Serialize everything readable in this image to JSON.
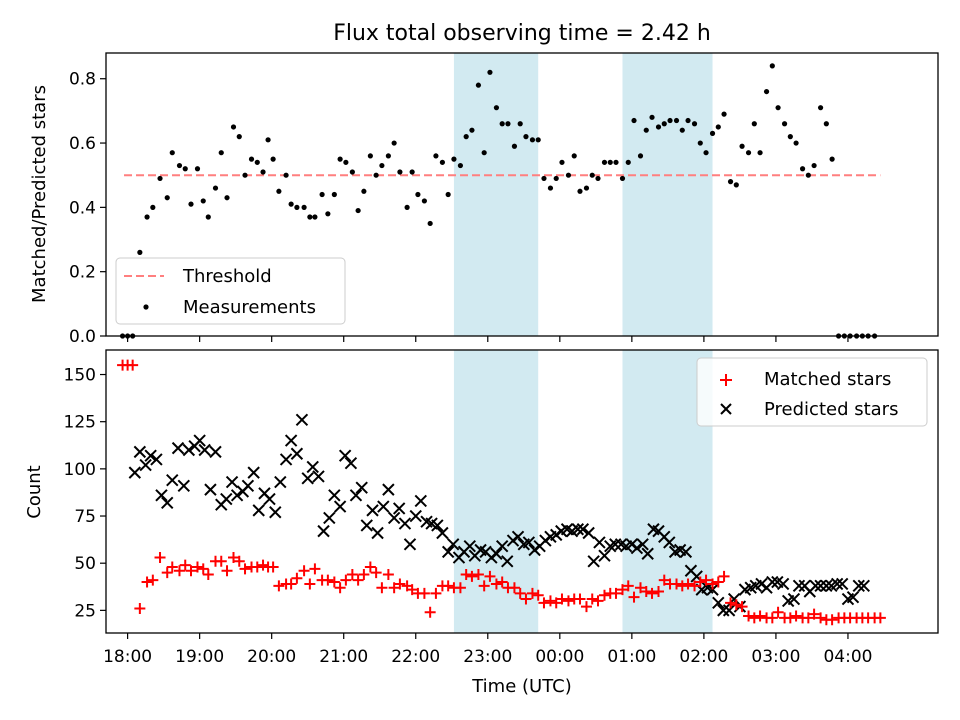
{
  "figure": {
    "title": "Flux total observing time = 2.42 h",
    "xlabel": "Time (UTC)"
  },
  "colors": {
    "band": "#add8e6",
    "threshold": "#ff7f7f",
    "measurement": "#000000",
    "matched": "#ff0000",
    "predicted": "#000000"
  },
  "chart_data": [
    {
      "type": "scatter",
      "ylabel": "Matched/Predicted stars",
      "ylim": [
        0,
        0.88
      ],
      "yticks": [
        "0.0",
        "0.2",
        "0.4",
        "0.6",
        "0.8"
      ],
      "ytick_values": [
        0,
        0.2,
        0.4,
        0.6,
        0.8
      ],
      "xlim": [
        17.7,
        29.25
      ],
      "shaded_intervals": [
        [
          22.53,
          23.7
        ],
        [
          24.87,
          26.12
        ]
      ],
      "threshold": {
        "name": "Threshold",
        "y": 0.5,
        "x_range": [
          17.95,
          28.45
        ]
      },
      "legend_position": "lower-left",
      "series": [
        {
          "name": "Measurements",
          "x": [
            17.93,
            18.0,
            18.07,
            18.17,
            18.27,
            18.35,
            18.45,
            18.55,
            18.62,
            18.72,
            18.8,
            18.88,
            18.97,
            19.05,
            19.12,
            19.22,
            19.3,
            19.38,
            19.47,
            19.55,
            19.63,
            19.72,
            19.8,
            19.88,
            19.95,
            20.02,
            20.1,
            20.2,
            20.27,
            20.35,
            20.45,
            20.53,
            20.6,
            20.7,
            20.78,
            20.87,
            20.95,
            21.03,
            21.12,
            21.2,
            21.28,
            21.37,
            21.45,
            21.53,
            21.62,
            21.7,
            21.78,
            21.88,
            21.95,
            22.03,
            22.12,
            22.2,
            22.28,
            22.37,
            22.45,
            22.53,
            22.62,
            22.7,
            22.78,
            22.87,
            22.95,
            23.03,
            23.12,
            23.2,
            23.28,
            23.37,
            23.45,
            23.53,
            23.62,
            23.7,
            23.78,
            23.87,
            23.95,
            24.03,
            24.12,
            24.2,
            24.28,
            24.37,
            24.45,
            24.53,
            24.62,
            24.7,
            24.78,
            24.87,
            24.95,
            25.03,
            25.12,
            25.2,
            25.28,
            25.37,
            25.45,
            25.53,
            25.62,
            25.7,
            25.78,
            25.87,
            25.95,
            26.03,
            26.12,
            26.2,
            26.28,
            26.37,
            26.45,
            26.53,
            26.62,
            26.7,
            26.78,
            26.87,
            26.95,
            27.03,
            27.12,
            27.2,
            27.28,
            27.37,
            27.45,
            27.53,
            27.62,
            27.7,
            27.78,
            27.87,
            27.95,
            28.03,
            28.12,
            28.2,
            28.28,
            28.37
          ],
          "y": [
            0.0,
            0.0,
            0.0,
            0.26,
            0.37,
            0.4,
            0.49,
            0.43,
            0.57,
            0.53,
            0.52,
            0.41,
            0.52,
            0.42,
            0.37,
            0.46,
            0.57,
            0.43,
            0.65,
            0.62,
            0.5,
            0.55,
            0.54,
            0.51,
            0.61,
            0.55,
            0.45,
            0.5,
            0.41,
            0.4,
            0.4,
            0.37,
            0.37,
            0.44,
            0.38,
            0.44,
            0.55,
            0.54,
            0.51,
            0.39,
            0.45,
            0.56,
            0.5,
            0.53,
            0.56,
            0.6,
            0.51,
            0.4,
            0.51,
            0.44,
            0.42,
            0.35,
            0.56,
            0.54,
            0.44,
            0.55,
            0.53,
            0.62,
            0.64,
            0.78,
            0.57,
            0.82,
            0.71,
            0.66,
            0.66,
            0.59,
            0.66,
            0.62,
            0.61,
            0.61,
            0.49,
            0.46,
            0.49,
            0.54,
            0.5,
            0.56,
            0.45,
            0.46,
            0.5,
            0.49,
            0.54,
            0.54,
            0.54,
            0.49,
            0.54,
            0.67,
            0.56,
            0.64,
            0.68,
            0.65,
            0.66,
            0.67,
            0.67,
            0.64,
            0.67,
            0.66,
            0.6,
            0.57,
            0.63,
            0.65,
            0.69,
            0.48,
            0.47,
            0.59,
            0.57,
            0.66,
            0.57,
            0.76,
            0.84,
            0.71,
            0.66,
            0.62,
            0.6,
            0.52,
            0.5,
            0.53,
            0.71,
            0.66,
            0.55,
            0.0,
            0.0,
            0.0,
            0.0,
            0.0,
            0.0,
            0.0
          ]
        }
      ]
    },
    {
      "type": "scatter",
      "ylabel": "Count",
      "ylim": [
        13,
        163
      ],
      "yticks": [
        "25",
        "50",
        "75",
        "100",
        "125",
        "150"
      ],
      "ytick_values": [
        25,
        50,
        75,
        100,
        125,
        150
      ],
      "xlim": [
        17.7,
        29.25
      ],
      "xticks": [
        "18:00",
        "19:00",
        "20:00",
        "21:00",
        "22:00",
        "23:00",
        "00:00",
        "01:00",
        "02:00",
        "03:00",
        "04:00"
      ],
      "xtick_values": [
        18,
        19,
        20,
        21,
        22,
        23,
        24,
        25,
        26,
        27,
        28
      ],
      "shaded_intervals": [
        [
          22.53,
          23.7
        ],
        [
          24.87,
          26.12
        ]
      ],
      "legend_position": "upper-right",
      "series": [
        {
          "name": "Matched stars",
          "marker": "+",
          "x": [
            17.93,
            18.0,
            18.07,
            18.17,
            18.27,
            18.35,
            18.45,
            18.55,
            18.62,
            18.72,
            18.8,
            18.88,
            18.97,
            19.05,
            19.12,
            19.22,
            19.3,
            19.38,
            19.47,
            19.55,
            19.63,
            19.72,
            19.8,
            19.88,
            19.95,
            20.02,
            20.1,
            20.2,
            20.27,
            20.35,
            20.45,
            20.53,
            20.6,
            20.7,
            20.78,
            20.87,
            20.95,
            21.03,
            21.12,
            21.2,
            21.28,
            21.37,
            21.45,
            21.53,
            21.62,
            21.7,
            21.78,
            21.88,
            21.95,
            22.03,
            22.12,
            22.2,
            22.28,
            22.37,
            22.45,
            22.53,
            22.62,
            22.7,
            22.78,
            22.87,
            22.95,
            23.03,
            23.12,
            23.2,
            23.28,
            23.37,
            23.45,
            23.53,
            23.62,
            23.7,
            23.78,
            23.87,
            23.95,
            24.03,
            24.12,
            24.2,
            24.28,
            24.37,
            24.45,
            24.53,
            24.62,
            24.7,
            24.78,
            24.87,
            24.95,
            25.03,
            25.12,
            25.2,
            25.28,
            25.37,
            25.45,
            25.53,
            25.62,
            25.7,
            25.78,
            25.87,
            25.95,
            26.03,
            26.12,
            26.2,
            26.28,
            26.37,
            26.45,
            26.53,
            26.62,
            26.7,
            26.78,
            26.87,
            26.95,
            27.03,
            27.12,
            27.2,
            27.28,
            27.37,
            27.45,
            27.53,
            27.62,
            27.7,
            27.78,
            27.87,
            27.95,
            28.03,
            28.12,
            28.2,
            28.28,
            28.37,
            28.45
          ],
          "y": [
            155,
            155,
            155,
            26,
            40,
            41,
            53,
            45,
            48,
            46,
            49,
            46,
            48,
            47,
            44,
            51,
            51,
            46,
            53,
            51,
            47,
            48,
            48,
            49,
            48,
            48,
            38,
            39,
            39,
            42,
            46,
            39,
            47,
            41,
            41,
            40,
            37,
            41,
            44,
            41,
            44,
            48,
            45,
            37,
            44,
            37,
            39,
            38,
            36,
            34,
            34,
            24,
            34,
            38,
            38,
            37,
            37,
            44,
            43,
            44,
            38,
            43,
            39,
            40,
            37,
            37,
            34,
            31,
            34,
            33,
            29,
            30,
            29,
            31,
            30,
            31,
            31,
            27,
            31,
            30,
            33,
            34,
            34,
            36,
            38,
            32,
            37,
            35,
            34,
            35,
            41,
            39,
            39,
            38,
            39,
            38,
            40,
            41,
            39,
            40,
            43,
            29,
            28,
            27,
            22,
            21,
            22,
            21,
            21,
            24,
            21,
            21,
            22,
            21,
            21,
            23,
            21,
            20,
            20,
            21,
            21,
            21,
            21,
            21,
            21,
            21,
            21
          ]
        },
        {
          "name": "Predicted stars",
          "marker": "x",
          "x": [
            18.1,
            18.17,
            18.25,
            18.32,
            18.4,
            18.47,
            18.55,
            18.62,
            18.7,
            18.78,
            18.85,
            18.93,
            19.0,
            19.07,
            19.15,
            19.22,
            19.3,
            19.37,
            19.45,
            19.52,
            19.6,
            19.67,
            19.75,
            19.82,
            19.9,
            19.97,
            20.05,
            20.12,
            20.2,
            20.27,
            20.35,
            20.42,
            20.5,
            20.57,
            20.65,
            20.72,
            20.8,
            20.87,
            20.95,
            21.02,
            21.1,
            21.17,
            21.25,
            21.32,
            21.4,
            21.47,
            21.55,
            21.62,
            21.7,
            21.77,
            21.85,
            21.92,
            22.0,
            22.07,
            22.15,
            22.22,
            22.3,
            22.37,
            22.45,
            22.52,
            22.6,
            22.67,
            22.75,
            22.82,
            22.9,
            22.97,
            23.05,
            23.12,
            23.2,
            23.27,
            23.35,
            23.42,
            23.5,
            23.57,
            23.65,
            23.72,
            23.8,
            23.87,
            23.95,
            24.02,
            24.1,
            24.17,
            24.25,
            24.32,
            24.4,
            24.47,
            24.55,
            24.62,
            24.7,
            24.77,
            24.85,
            24.92,
            25.0,
            25.07,
            25.15,
            25.22,
            25.3,
            25.37,
            25.45,
            25.52,
            25.6,
            25.67,
            25.75,
            25.82,
            25.9,
            25.97,
            26.05,
            26.12,
            26.2,
            26.27,
            26.35,
            26.42,
            26.5,
            26.57,
            26.65,
            26.72,
            26.8,
            26.87,
            26.95,
            27.02,
            27.1,
            27.17,
            27.25,
            27.32,
            27.4,
            27.47,
            27.55,
            27.62,
            27.7,
            27.77,
            27.85,
            27.92,
            28.0,
            28.07,
            28.15,
            28.22
          ],
          "y": [
            98,
            109,
            102,
            107,
            105,
            86,
            82,
            94,
            111,
            91,
            110,
            112,
            115,
            110,
            89,
            109,
            81,
            84,
            93,
            86,
            88,
            91,
            98,
            78,
            87,
            84,
            77,
            93,
            105,
            115,
            108,
            126,
            95,
            101,
            96,
            67,
            74,
            86,
            80,
            107,
            103,
            86,
            90,
            70,
            78,
            66,
            80,
            89,
            74,
            79,
            71,
            60,
            75,
            83,
            72,
            71,
            70,
            66,
            56,
            60,
            53,
            56,
            59,
            54,
            57,
            56,
            53,
            55,
            59,
            51,
            62,
            64,
            60,
            61,
            57,
            59,
            62,
            64,
            65,
            67,
            68,
            67,
            68,
            68,
            66,
            51,
            61,
            54,
            59,
            60,
            60,
            59,
            60,
            58,
            60,
            55,
            68,
            67,
            64,
            61,
            56,
            57,
            56,
            46,
            43,
            36,
            37,
            36,
            29,
            25,
            25,
            31,
            27,
            36,
            37,
            38,
            39,
            37,
            40,
            40,
            39,
            30,
            31,
            38,
            38,
            35,
            38,
            38,
            38,
            38,
            39,
            39,
            31,
            32,
            38,
            38
          ]
        }
      ]
    }
  ]
}
